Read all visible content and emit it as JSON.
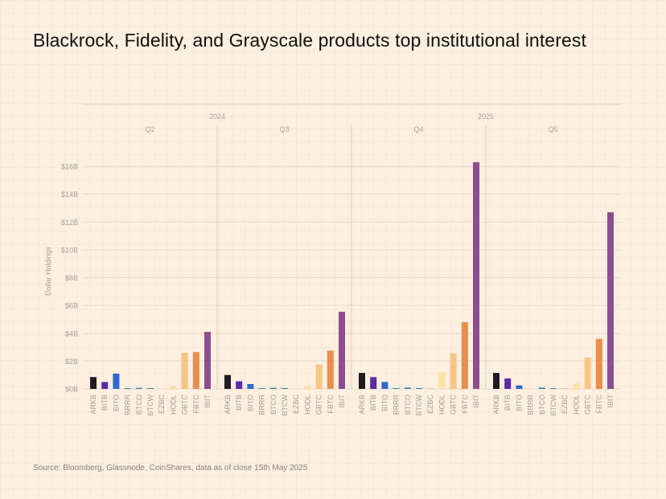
{
  "title": "Blackrock, Fidelity, and Grayscale products top institutional interest",
  "source": "Source: Bloomberg, Glassnode, CoinShares, data as of close 15th May 2025",
  "colors": {
    "ARKB": "#201a24",
    "BITB": "#5a2aa8",
    "BITO": "#2e6ad1",
    "BRRR": "#2f8aa8",
    "BTCO": "#2f8aa8",
    "BTCW": "#2f8aa8",
    "EZBC": "#d8c9b8",
    "HODL": "#fbe1a4",
    "GBTC": "#f7c585",
    "FBTC": "#e88f4e",
    "IBIT": "#8e4e8e",
    "gridline": "#e7d9c9",
    "divider": "#dccdbd",
    "axis_text": "#a99d93"
  },
  "chart_data": {
    "type": "bar",
    "ylabel": "Dollar Holdings",
    "ylim": [
      0,
      16
    ],
    "yticks": [
      "$0B",
      "$2B",
      "$4B",
      "$6B",
      "$8B",
      "$10B",
      "$12B",
      "$14B",
      "$16B"
    ],
    "categories": [
      "ARKB",
      "BITB",
      "BITO",
      "BRRR",
      "BTCO",
      "BTCW",
      "EZBC",
      "HODL",
      "GBTC",
      "FBTC",
      "IBIT"
    ],
    "panels": [
      {
        "year": "",
        "quarter": "Q2",
        "values": [
          0.85,
          0.5,
          1.1,
          0.03,
          0.08,
          0.04,
          0.0,
          0.2,
          2.6,
          2.65,
          4.1
        ]
      },
      {
        "year": "2024",
        "quarter": "Q3",
        "values": [
          1.0,
          0.55,
          0.35,
          0.03,
          0.08,
          0.04,
          0.0,
          0.2,
          1.75,
          2.75,
          5.55
        ]
      },
      {
        "year": "",
        "quarter": "Q4",
        "values": [
          1.15,
          0.85,
          0.5,
          0.03,
          0.1,
          0.05,
          0.02,
          1.2,
          2.55,
          4.8,
          16.3
        ]
      },
      {
        "year": "2025",
        "quarter": "Q5",
        "values": [
          1.15,
          0.75,
          0.25,
          0.0,
          0.1,
          0.04,
          0.02,
          0.4,
          2.25,
          3.6,
          12.7
        ]
      }
    ]
  }
}
